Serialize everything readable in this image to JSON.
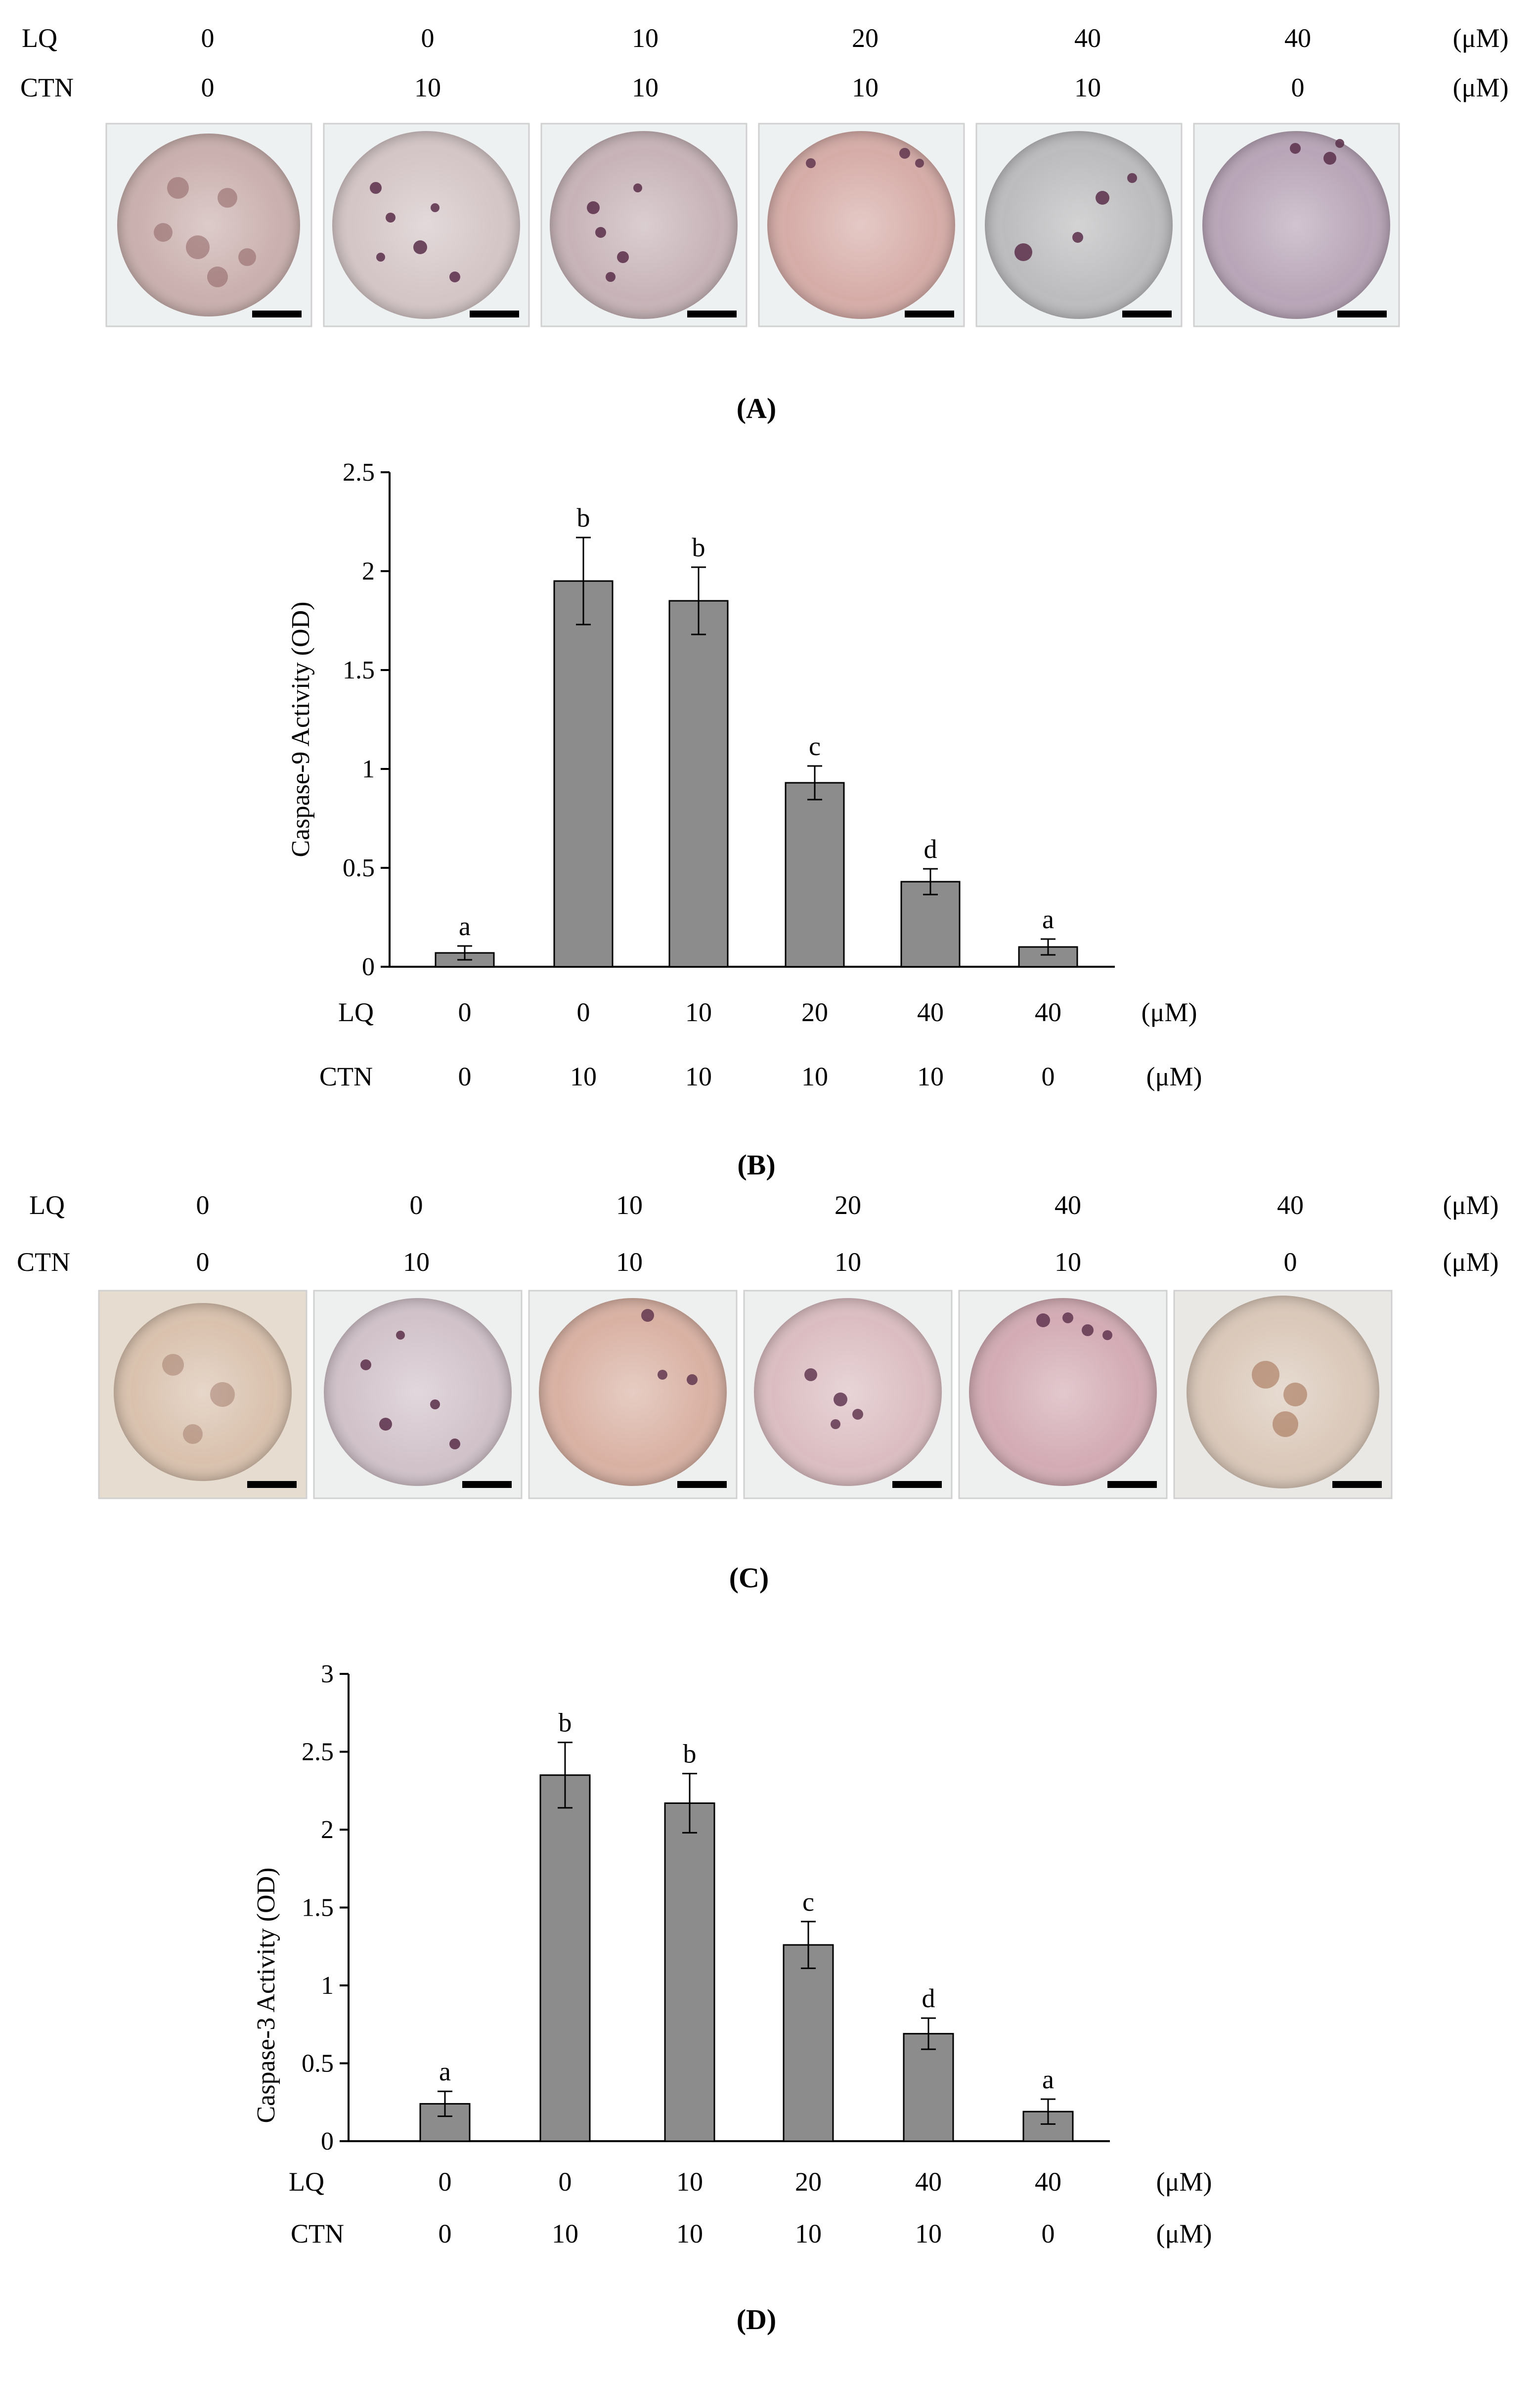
{
  "units": "(μM)",
  "row_labels": {
    "lq": "LQ",
    "ctn": "CTN"
  },
  "conditions": {
    "lq": [
      "0",
      "0",
      "10",
      "20",
      "40",
      "40"
    ],
    "ctn": [
      "0",
      "10",
      "10",
      "10",
      "10",
      "0"
    ]
  },
  "panels": {
    "A": {
      "label": "(A)",
      "tint_colors": [
        "#c3a4a2",
        "#cfbdbe",
        "#bfa8ad",
        "#d3a49e",
        "#b3b3b5",
        "#b19cb0"
      ]
    },
    "B": {
      "label": "(B)"
    },
    "C": {
      "label": "(C)",
      "tint_colors": [
        "#d7bea8",
        "#cbbac2",
        "#d6aa9a",
        "#d8b7bb",
        "#cfa3ad",
        "#d8c4b4"
      ]
    },
    "D": {
      "label": "(D)"
    }
  },
  "colors": {
    "bar_fill": "#8c8c8c",
    "bar_stroke": "#000000",
    "panel_border": "#d0d0d0",
    "cell_dots": "#5a2f4a"
  },
  "icons": {
    "scale_bar": "scale-bar-icon",
    "micrograph": "micrograph-image"
  },
  "chart_data": [
    {
      "id": "B",
      "type": "bar",
      "ylabel": "Caspase-9 Activity (OD)",
      "ylim": [
        0,
        2.5
      ],
      "yticks": [
        0,
        0.5,
        1,
        1.5,
        2,
        2.5
      ],
      "ytick_labels": [
        "0",
        "0.5",
        "1",
        "1.5",
        "2",
        "2.5"
      ],
      "values": [
        0.07,
        1.95,
        1.85,
        0.93,
        0.43,
        0.1
      ],
      "errors": [
        0.035,
        0.22,
        0.17,
        0.085,
        0.065,
        0.04
      ],
      "letters": [
        "a",
        "b",
        "b",
        "c",
        "d",
        "a"
      ],
      "grid": false,
      "legend": "none"
    },
    {
      "id": "D",
      "type": "bar",
      "ylabel": "Caspase-3 Activity (OD)",
      "ylim": [
        0,
        3
      ],
      "yticks": [
        0,
        0.5,
        1,
        1.5,
        2,
        2.5,
        3
      ],
      "ytick_labels": [
        "0",
        "0.5",
        "1",
        "1.5",
        "2",
        "2.5",
        "3"
      ],
      "values": [
        0.24,
        2.35,
        2.17,
        1.26,
        0.69,
        0.19
      ],
      "errors": [
        0.08,
        0.21,
        0.19,
        0.15,
        0.1,
        0.08
      ],
      "letters": [
        "a",
        "b",
        "b",
        "c",
        "d",
        "a"
      ],
      "grid": false,
      "legend": "none"
    }
  ]
}
